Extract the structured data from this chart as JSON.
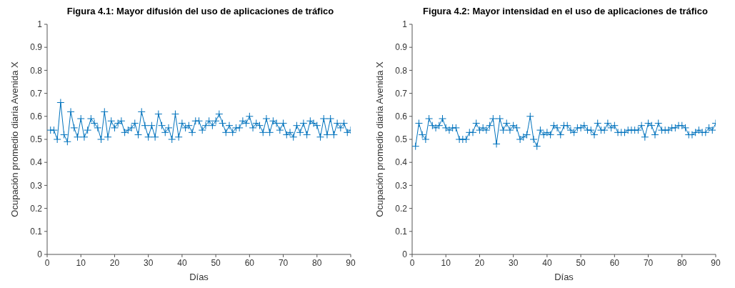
{
  "chart_data": [
    {
      "type": "line",
      "title": "Figura 4.1: Mayor difusión del uso de aplicaciones de tráfico",
      "xlabel": "Días",
      "ylabel": "Ocupación promedio diaria Avenida X",
      "color": "#0072bd",
      "marker": "cross",
      "line_style": "solid",
      "xlim": [
        0,
        90
      ],
      "ylim": [
        0,
        1
      ],
      "xticks": [
        0,
        10,
        20,
        30,
        40,
        50,
        60,
        70,
        80,
        90
      ],
      "yticks": [
        0,
        0.1,
        0.2,
        0.3,
        0.4,
        0.5,
        0.6,
        0.7,
        0.8,
        0.9,
        1
      ],
      "x": [
        1,
        2,
        3,
        4,
        5,
        6,
        7,
        8,
        9,
        10,
        11,
        12,
        13,
        14,
        15,
        16,
        17,
        18,
        19,
        20,
        21,
        22,
        23,
        24,
        25,
        26,
        27,
        28,
        29,
        30,
        31,
        32,
        33,
        34,
        35,
        36,
        37,
        38,
        39,
        40,
        41,
        42,
        43,
        44,
        45,
        46,
        47,
        48,
        49,
        50,
        51,
        52,
        53,
        54,
        55,
        56,
        57,
        58,
        59,
        60,
        61,
        62,
        63,
        64,
        65,
        66,
        67,
        68,
        69,
        70,
        71,
        72,
        73,
        74,
        75,
        76,
        77,
        78,
        79,
        80,
        81,
        82,
        83,
        84,
        85,
        86,
        87,
        88,
        89,
        90
      ],
      "values": [
        0.54,
        0.54,
        0.5,
        0.66,
        0.52,
        0.49,
        0.62,
        0.55,
        0.51,
        0.59,
        0.51,
        0.54,
        0.59,
        0.57,
        0.55,
        0.5,
        0.62,
        0.51,
        0.58,
        0.55,
        0.57,
        0.58,
        0.53,
        0.54,
        0.55,
        0.57,
        0.52,
        0.62,
        0.56,
        0.51,
        0.56,
        0.51,
        0.61,
        0.56,
        0.53,
        0.55,
        0.5,
        0.61,
        0.51,
        0.57,
        0.55,
        0.56,
        0.53,
        0.58,
        0.58,
        0.54,
        0.56,
        0.58,
        0.56,
        0.58,
        0.61,
        0.57,
        0.53,
        0.56,
        0.53,
        0.55,
        0.55,
        0.58,
        0.57,
        0.6,
        0.55,
        0.57,
        0.56,
        0.53,
        0.59,
        0.53,
        0.58,
        0.57,
        0.54,
        0.57,
        0.52,
        0.53,
        0.51,
        0.56,
        0.53,
        0.57,
        0.52,
        0.58,
        0.57,
        0.56,
        0.51,
        0.59,
        0.52,
        0.59,
        0.52,
        0.57,
        0.55,
        0.57,
        0.53,
        0.54
      ]
    },
    {
      "type": "line",
      "title": "Figura 4.2: Mayor intensidad en el uso de aplicaciones de tráfico",
      "xlabel": "Días",
      "ylabel": "Ocupación promedio diaria Avenida X",
      "color": "#0072bd",
      "marker": "cross",
      "line_style": "solid",
      "xlim": [
        0,
        90
      ],
      "ylim": [
        0,
        1
      ],
      "xticks": [
        0,
        10,
        20,
        30,
        40,
        50,
        60,
        70,
        80,
        90
      ],
      "yticks": [
        0,
        0.1,
        0.2,
        0.3,
        0.4,
        0.5,
        0.6,
        0.7,
        0.8,
        0.9,
        1
      ],
      "x": [
        1,
        2,
        3,
        4,
        5,
        6,
        7,
        8,
        9,
        10,
        11,
        12,
        13,
        14,
        15,
        16,
        17,
        18,
        19,
        20,
        21,
        22,
        23,
        24,
        25,
        26,
        27,
        28,
        29,
        30,
        31,
        32,
        33,
        34,
        35,
        36,
        37,
        38,
        39,
        40,
        41,
        42,
        43,
        44,
        45,
        46,
        47,
        48,
        49,
        50,
        51,
        52,
        53,
        54,
        55,
        56,
        57,
        58,
        59,
        60,
        61,
        62,
        63,
        64,
        65,
        66,
        67,
        68,
        69,
        70,
        71,
        72,
        73,
        74,
        75,
        76,
        77,
        78,
        79,
        80,
        81,
        82,
        83,
        84,
        85,
        86,
        87,
        88,
        89,
        90
      ],
      "values": [
        0.47,
        0.57,
        0.52,
        0.5,
        0.59,
        0.56,
        0.55,
        0.56,
        0.59,
        0.55,
        0.54,
        0.55,
        0.55,
        0.5,
        0.5,
        0.5,
        0.53,
        0.53,
        0.57,
        0.54,
        0.55,
        0.54,
        0.56,
        0.59,
        0.48,
        0.59,
        0.54,
        0.57,
        0.54,
        0.56,
        0.55,
        0.5,
        0.51,
        0.52,
        0.6,
        0.5,
        0.47,
        0.54,
        0.52,
        0.53,
        0.52,
        0.56,
        0.55,
        0.52,
        0.56,
        0.56,
        0.54,
        0.53,
        0.55,
        0.55,
        0.56,
        0.54,
        0.54,
        0.52,
        0.57,
        0.54,
        0.54,
        0.57,
        0.55,
        0.56,
        0.53,
        0.53,
        0.53,
        0.54,
        0.54,
        0.54,
        0.54,
        0.56,
        0.51,
        0.57,
        0.56,
        0.52,
        0.57,
        0.54,
        0.54,
        0.54,
        0.55,
        0.55,
        0.56,
        0.56,
        0.55,
        0.52,
        0.52,
        0.53,
        0.54,
        0.53,
        0.53,
        0.55,
        0.54,
        0.57
      ]
    }
  ]
}
